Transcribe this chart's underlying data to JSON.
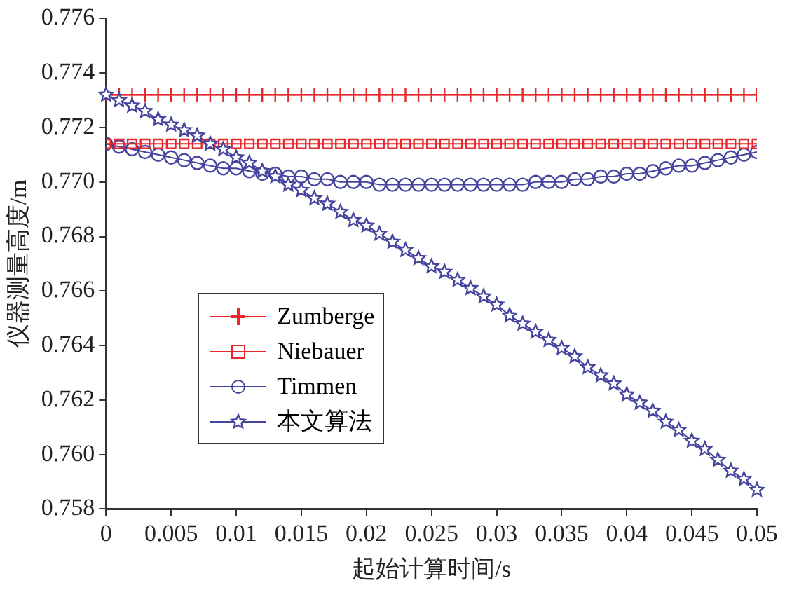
{
  "chart_data": {
    "type": "line",
    "xlabel": "起始计算时间/s",
    "ylabel": "仪器测量高度/m",
    "x": [
      0,
      0.001,
      0.002,
      0.003,
      0.004,
      0.005,
      0.006,
      0.007,
      0.008,
      0.009,
      0.01,
      0.011,
      0.012,
      0.013,
      0.014,
      0.015,
      0.016,
      0.017,
      0.018,
      0.019,
      0.02,
      0.021,
      0.022,
      0.023,
      0.024,
      0.025,
      0.026,
      0.027,
      0.028,
      0.029,
      0.03,
      0.031,
      0.032,
      0.033,
      0.034,
      0.035,
      0.036,
      0.037,
      0.038,
      0.039,
      0.04,
      0.041,
      0.042,
      0.043,
      0.044,
      0.045,
      0.046,
      0.047,
      0.048,
      0.049,
      0.05
    ],
    "series": [
      {
        "name": "Zumberge",
        "color": "#e8262b",
        "marker": "cross",
        "values": [
          0.7732,
          0.7732,
          0.7732,
          0.7732,
          0.7732,
          0.7732,
          0.7732,
          0.7732,
          0.7732,
          0.7732,
          0.7732,
          0.7732,
          0.7732,
          0.7732,
          0.7732,
          0.7732,
          0.7732,
          0.7732,
          0.7732,
          0.7732,
          0.7732,
          0.7732,
          0.7732,
          0.7732,
          0.7732,
          0.7732,
          0.7732,
          0.7732,
          0.7732,
          0.7732,
          0.7732,
          0.7732,
          0.7732,
          0.7732,
          0.7732,
          0.7732,
          0.7732,
          0.7732,
          0.7732,
          0.7732,
          0.7732,
          0.7732,
          0.7732,
          0.7732,
          0.7732,
          0.7732,
          0.7732,
          0.7732,
          0.7732,
          0.7732,
          0.7732
        ]
      },
      {
        "name": "Niebauer",
        "color": "#e8262b",
        "marker": "square",
        "values": [
          0.7714,
          0.7714,
          0.7714,
          0.7714,
          0.7714,
          0.7714,
          0.7714,
          0.7714,
          0.7714,
          0.7714,
          0.7714,
          0.7714,
          0.7714,
          0.7714,
          0.7714,
          0.7714,
          0.7714,
          0.7714,
          0.7714,
          0.7714,
          0.7714,
          0.7714,
          0.7714,
          0.7714,
          0.7714,
          0.7714,
          0.7714,
          0.7714,
          0.7714,
          0.7714,
          0.7714,
          0.7714,
          0.7714,
          0.7714,
          0.7714,
          0.7714,
          0.7714,
          0.7714,
          0.7714,
          0.7714,
          0.7714,
          0.7714,
          0.7714,
          0.7714,
          0.7714,
          0.7714,
          0.7714,
          0.7714,
          0.7714,
          0.7714,
          0.7714
        ]
      },
      {
        "name": "Timmen",
        "color": "#45449e",
        "marker": "circle",
        "values": [
          0.7714,
          0.7713,
          0.7712,
          0.7711,
          0.771,
          0.7709,
          0.7708,
          0.7707,
          0.7706,
          0.7705,
          0.7705,
          0.7704,
          0.7703,
          0.7703,
          0.7702,
          0.7702,
          0.7701,
          0.7701,
          0.77,
          0.77,
          0.77,
          0.7699,
          0.7699,
          0.7699,
          0.7699,
          0.7699,
          0.7699,
          0.7699,
          0.7699,
          0.7699,
          0.7699,
          0.7699,
          0.7699,
          0.77,
          0.77,
          0.77,
          0.7701,
          0.7701,
          0.7702,
          0.7702,
          0.7703,
          0.7703,
          0.7704,
          0.7705,
          0.7706,
          0.7706,
          0.7707,
          0.7708,
          0.7709,
          0.771,
          0.7711
        ]
      },
      {
        "name": "本文算法",
        "color": "#45449e",
        "marker": "star",
        "values": [
          0.7732,
          0.773,
          0.7728,
          0.7726,
          0.7723,
          0.7721,
          0.7719,
          0.7717,
          0.7714,
          0.7712,
          0.7709,
          0.7707,
          0.7704,
          0.7702,
          0.7699,
          0.7697,
          0.7694,
          0.7692,
          0.7689,
          0.7686,
          0.7684,
          0.7681,
          0.7678,
          0.7675,
          0.7672,
          0.7669,
          0.7667,
          0.7664,
          0.7661,
          0.7658,
          0.7655,
          0.7651,
          0.7648,
          0.7645,
          0.7642,
          0.7639,
          0.7636,
          0.7632,
          0.7629,
          0.7626,
          0.7622,
          0.7619,
          0.7616,
          0.7612,
          0.7609,
          0.7605,
          0.7602,
          0.7598,
          0.7594,
          0.7591,
          0.7587
        ]
      }
    ],
    "xlim": [
      0,
      0.05
    ],
    "xticks": [
      0,
      0.005,
      0.01,
      0.015,
      0.02,
      0.025,
      0.03,
      0.035,
      0.04,
      0.045,
      0.05
    ],
    "ylim": [
      0.758,
      0.776
    ],
    "yticks": [
      0.758,
      {
        "value": 0.76,
        "label": "0.760"
      },
      0.762,
      0.764,
      0.766,
      0.768,
      {
        "value": 0.77,
        "label": "0.770"
      },
      0.772,
      0.774,
      0.776
    ],
    "grid": false,
    "legend": "left",
    "line_style": "solid"
  }
}
